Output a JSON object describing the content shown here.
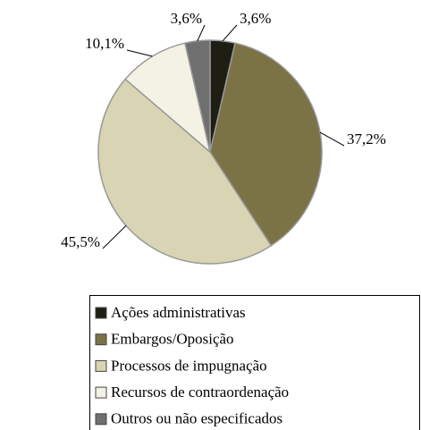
{
  "chart_data": {
    "type": "pie",
    "categories": [
      "Ações administrativas",
      "Embargos/Oposição",
      "Processos de impugnação",
      "Recursos de contraordenação",
      "Outros ou não especificados"
    ],
    "values": [
      3.6,
      37.2,
      45.5,
      10.1,
      3.6
    ],
    "value_labels": [
      "3,6%",
      "37,2%",
      "45,5%",
      "10,1%",
      "3,6%"
    ],
    "colors": [
      "#1e1e14",
      "#7b7246",
      "#d9d4b3",
      "#f4f2e4",
      "#6f6f6f"
    ]
  }
}
